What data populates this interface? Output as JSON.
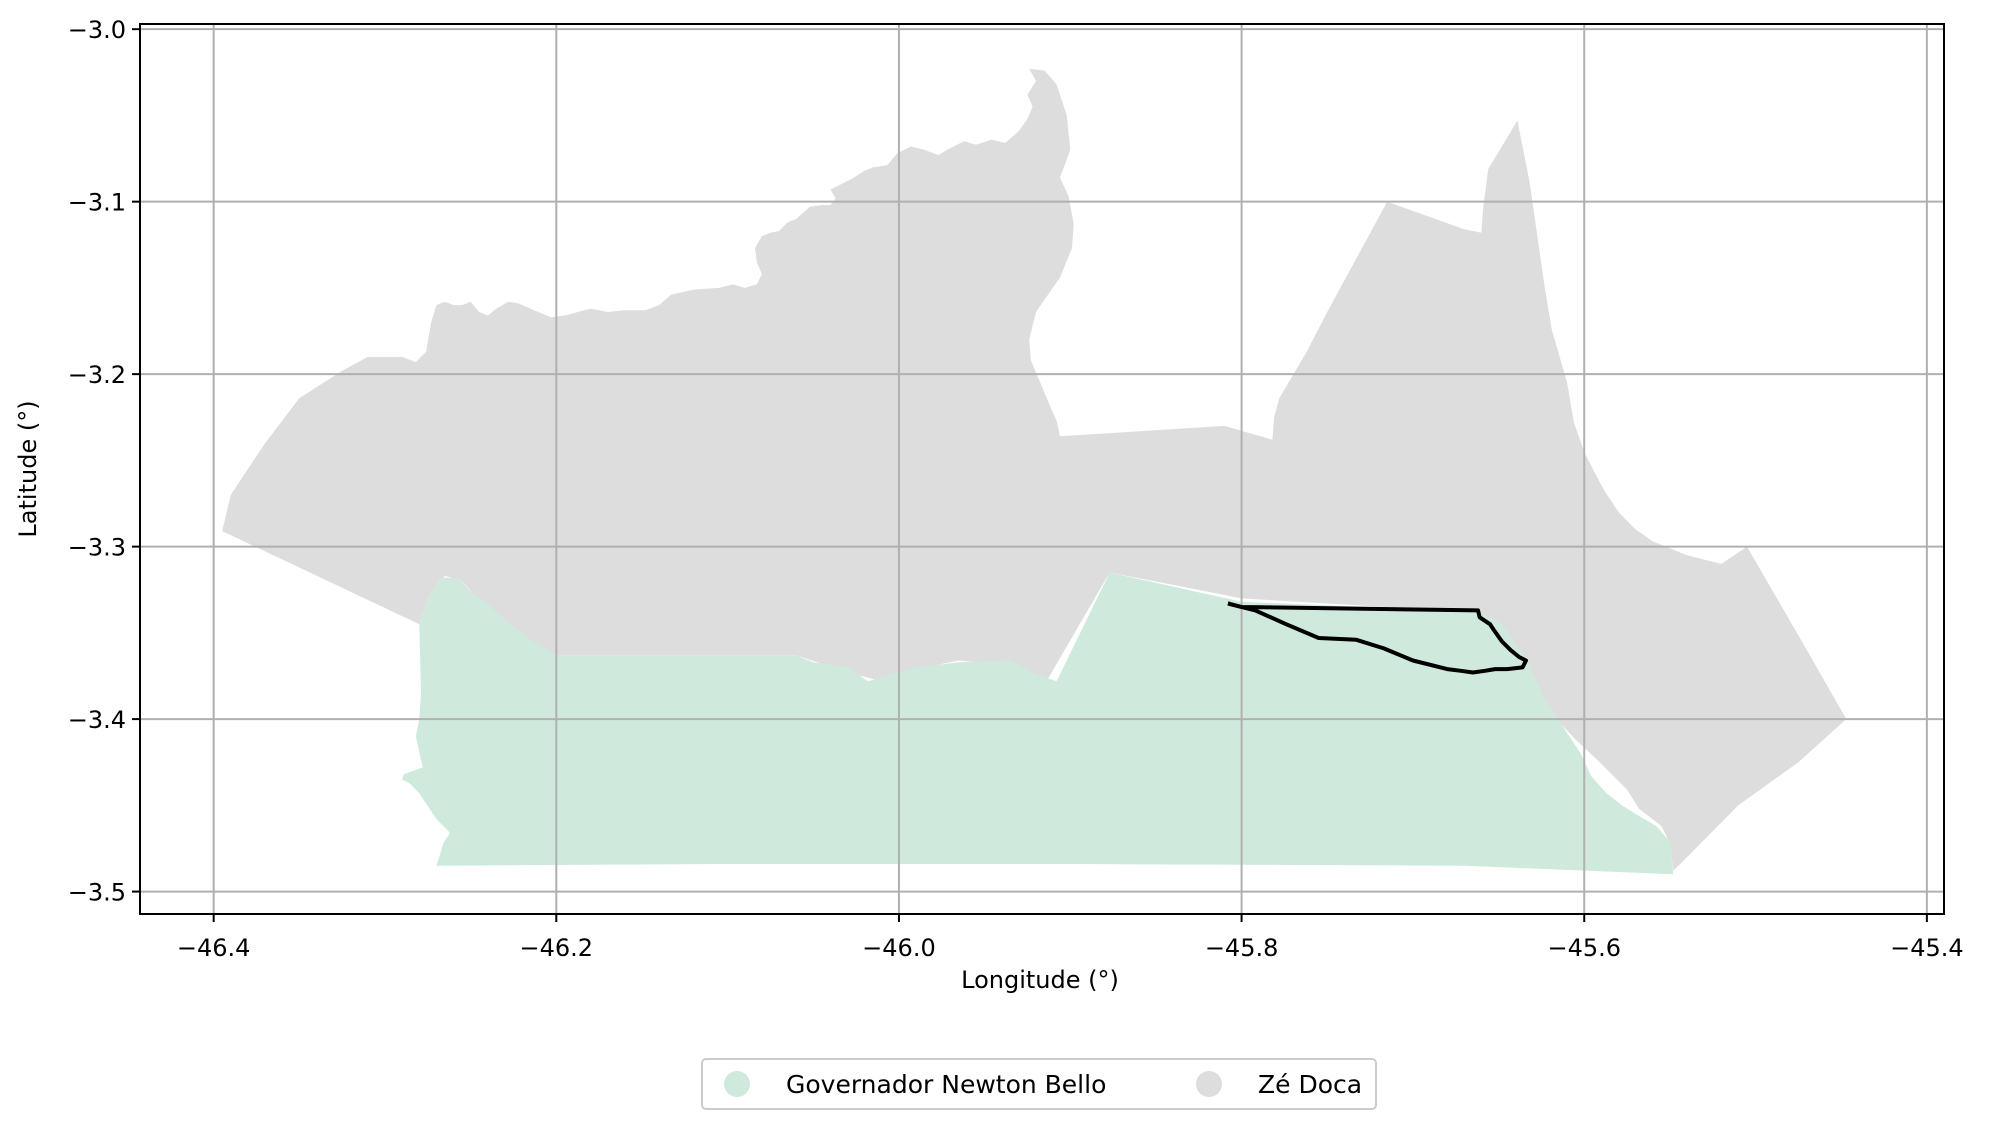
{
  "chart_data": {
    "type": "map",
    "xlabel": "Longitude (°)",
    "ylabel": "Latitude (°)",
    "xlim": [
      -46.443,
      -45.39
    ],
    "ylim": [
      -3.513,
      -2.997
    ],
    "grid": true,
    "legend_position": "bottom-center",
    "x_ticks": [
      {
        "value": -46.4,
        "label": "−46.4"
      },
      {
        "value": -46.2,
        "label": "−46.2"
      },
      {
        "value": -46.0,
        "label": "−46.0"
      },
      {
        "value": -45.8,
        "label": "−45.8"
      },
      {
        "value": -45.6,
        "label": "−45.6"
      },
      {
        "value": -45.4,
        "label": "−45.4"
      }
    ],
    "y_ticks": [
      {
        "value": -3.0,
        "label": "−3.0"
      },
      {
        "value": -3.1,
        "label": "−3.1"
      },
      {
        "value": -3.2,
        "label": "−3.2"
      },
      {
        "value": -3.3,
        "label": "−3.3"
      },
      {
        "value": -3.4,
        "label": "−3.4"
      },
      {
        "value": -3.5,
        "label": "−3.5"
      }
    ],
    "regions": [
      {
        "name": "Zé Doca",
        "color": "#dddddd",
        "outline": [
          [
            -46.395,
            -3.291
          ],
          [
            -46.39,
            -3.27
          ],
          [
            -46.37,
            -3.24
          ],
          [
            -46.35,
            -3.214
          ],
          [
            -46.325,
            -3.198
          ],
          [
            -46.31,
            -3.19
          ],
          [
            -46.29,
            -3.19
          ],
          [
            -46.282,
            -3.193
          ],
          [
            -46.276,
            -3.187
          ],
          [
            -46.273,
            -3.17
          ],
          [
            -46.27,
            -3.16
          ],
          [
            -46.265,
            -3.158
          ],
          [
            -46.26,
            -3.16
          ],
          [
            -46.255,
            -3.16
          ],
          [
            -46.25,
            -3.158
          ],
          [
            -46.245,
            -3.164
          ],
          [
            -46.24,
            -3.166
          ],
          [
            -46.235,
            -3.162
          ],
          [
            -46.228,
            -3.158
          ],
          [
            -46.222,
            -3.159
          ],
          [
            -46.213,
            -3.163
          ],
          [
            -46.203,
            -3.167
          ],
          [
            -46.195,
            -3.166
          ],
          [
            -46.18,
            -3.162
          ],
          [
            -46.17,
            -3.164
          ],
          [
            -46.16,
            -3.163
          ],
          [
            -46.148,
            -3.163
          ],
          [
            -46.14,
            -3.16
          ],
          [
            -46.133,
            -3.154
          ],
          [
            -46.12,
            -3.151
          ],
          [
            -46.105,
            -3.15
          ],
          [
            -46.097,
            -3.148
          ],
          [
            -46.09,
            -3.15
          ],
          [
            -46.083,
            -3.148
          ],
          [
            -46.08,
            -3.142
          ],
          [
            -46.083,
            -3.135
          ],
          [
            -46.084,
            -3.127
          ],
          [
            -46.08,
            -3.12
          ],
          [
            -46.075,
            -3.118
          ],
          [
            -46.07,
            -3.117
          ],
          [
            -46.065,
            -3.112
          ],
          [
            -46.06,
            -3.11
          ],
          [
            -46.052,
            -3.103
          ],
          [
            -46.045,
            -3.102
          ],
          [
            -46.04,
            -3.102
          ],
          [
            -46.037,
            -3.098
          ],
          [
            -46.04,
            -3.093
          ],
          [
            -46.028,
            -3.087
          ],
          [
            -46.02,
            -3.082
          ],
          [
            -46.015,
            -3.08
          ],
          [
            -46.007,
            -3.079
          ],
          [
            -46.001,
            -3.072
          ],
          [
            -45.993,
            -3.068
          ],
          [
            -45.985,
            -3.07
          ],
          [
            -45.977,
            -3.073
          ],
          [
            -45.972,
            -3.07
          ],
          [
            -45.962,
            -3.065
          ],
          [
            -45.955,
            -3.067
          ],
          [
            -45.946,
            -3.064
          ],
          [
            -45.938,
            -3.066
          ],
          [
            -45.93,
            -3.059
          ],
          [
            -45.925,
            -3.052
          ],
          [
            -45.922,
            -3.045
          ],
          [
            -45.925,
            -3.038
          ],
          [
            -45.92,
            -3.03
          ],
          [
            -45.924,
            -3.023
          ],
          [
            -45.915,
            -3.024
          ],
          [
            -45.908,
            -3.032
          ],
          [
            -45.902,
            -3.05
          ],
          [
            -45.9,
            -3.07
          ],
          [
            -45.906,
            -3.086
          ],
          [
            -45.901,
            -3.097
          ],
          [
            -45.898,
            -3.113
          ],
          [
            -45.899,
            -3.127
          ],
          [
            -45.906,
            -3.144
          ],
          [
            -45.92,
            -3.164
          ],
          [
            -45.924,
            -3.18
          ],
          [
            -45.923,
            -3.192
          ],
          [
            -45.912,
            -3.218
          ],
          [
            -45.908,
            -3.227
          ],
          [
            -45.906,
            -3.236
          ],
          [
            -45.81,
            -3.23
          ],
          [
            -45.782,
            -3.238
          ],
          [
            -45.781,
            -3.225
          ],
          [
            -45.778,
            -3.214
          ],
          [
            -45.762,
            -3.187
          ],
          [
            -45.75,
            -3.164
          ],
          [
            -45.715,
            -3.1
          ],
          [
            -45.67,
            -3.116
          ],
          [
            -45.66,
            -3.118
          ],
          [
            -45.659,
            -3.104
          ],
          [
            -45.656,
            -3.081
          ],
          [
            -45.639,
            -3.053
          ],
          [
            -45.632,
            -3.088
          ],
          [
            -45.623,
            -3.15
          ],
          [
            -45.619,
            -3.174
          ],
          [
            -45.61,
            -3.205
          ],
          [
            -45.606,
            -3.228
          ],
          [
            -45.6,
            -3.245
          ],
          [
            -45.594,
            -3.257
          ],
          [
            -45.588,
            -3.268
          ],
          [
            -45.58,
            -3.28
          ],
          [
            -45.57,
            -3.29
          ],
          [
            -45.56,
            -3.297
          ],
          [
            -45.54,
            -3.305
          ],
          [
            -45.52,
            -3.31
          ],
          [
            -45.505,
            -3.3
          ],
          [
            -45.47,
            -3.36
          ],
          [
            -45.447,
            -3.4
          ],
          [
            -45.475,
            -3.425
          ],
          [
            -45.51,
            -3.45
          ],
          [
            -45.535,
            -3.475
          ],
          [
            -45.548,
            -3.488
          ],
          [
            -45.55,
            -3.472
          ],
          [
            -45.555,
            -3.462
          ],
          [
            -45.568,
            -3.452
          ],
          [
            -45.575,
            -3.441
          ],
          [
            -45.592,
            -3.424
          ],
          [
            -45.605,
            -3.412
          ],
          [
            -45.618,
            -3.398
          ],
          [
            -45.626,
            -3.383
          ],
          [
            -45.633,
            -3.367
          ],
          [
            -45.663,
            -3.338
          ],
          [
            -45.8,
            -3.33
          ],
          [
            -45.877,
            -3.315
          ],
          [
            -45.915,
            -3.38
          ],
          [
            -45.935,
            -3.369
          ],
          [
            -45.965,
            -3.366
          ],
          [
            -45.99,
            -3.371
          ],
          [
            -46.01,
            -3.378
          ],
          [
            -46.03,
            -3.373
          ],
          [
            -46.06,
            -3.363
          ],
          [
            -46.2,
            -3.363
          ],
          [
            -46.215,
            -3.355
          ],
          [
            -46.235,
            -3.343
          ],
          [
            -46.255,
            -3.32
          ],
          [
            -46.265,
            -3.317
          ],
          [
            -46.275,
            -3.33
          ],
          [
            -46.28,
            -3.345
          ]
        ]
      },
      {
        "name": "Governador Newton Bello",
        "color": "#cfeadd",
        "outline": [
          [
            -46.28,
            -3.345
          ],
          [
            -46.275,
            -3.33
          ],
          [
            -46.268,
            -3.318
          ],
          [
            -46.257,
            -3.318
          ],
          [
            -46.25,
            -3.326
          ],
          [
            -46.24,
            -3.333
          ],
          [
            -46.233,
            -3.34
          ],
          [
            -46.215,
            -3.354
          ],
          [
            -46.2,
            -3.363
          ],
          [
            -46.06,
            -3.363
          ],
          [
            -46.05,
            -3.367
          ],
          [
            -46.03,
            -3.37
          ],
          [
            -46.018,
            -3.378
          ],
          [
            -45.99,
            -3.37
          ],
          [
            -45.965,
            -3.367
          ],
          [
            -45.935,
            -3.366
          ],
          [
            -45.92,
            -3.374
          ],
          [
            -45.908,
            -3.378
          ],
          [
            -45.877,
            -3.315
          ],
          [
            -45.8,
            -3.332
          ],
          [
            -45.7,
            -3.336
          ],
          [
            -45.663,
            -3.337
          ],
          [
            -45.648,
            -3.345
          ],
          [
            -45.633,
            -3.367
          ],
          [
            -45.623,
            -3.388
          ],
          [
            -45.61,
            -3.408
          ],
          [
            -45.602,
            -3.42
          ],
          [
            -45.596,
            -3.433
          ],
          [
            -45.587,
            -3.443
          ],
          [
            -45.578,
            -3.45
          ],
          [
            -45.57,
            -3.455
          ],
          [
            -45.558,
            -3.462
          ],
          [
            -45.55,
            -3.471
          ],
          [
            -45.548,
            -3.49
          ],
          [
            -45.67,
            -3.485
          ],
          [
            -45.9,
            -3.484
          ],
          [
            -46.1,
            -3.484
          ],
          [
            -46.27,
            -3.485
          ],
          [
            -46.268,
            -3.479
          ],
          [
            -46.266,
            -3.472
          ],
          [
            -46.262,
            -3.466
          ],
          [
            -46.27,
            -3.458
          ],
          [
            -46.28,
            -3.443
          ],
          [
            -46.286,
            -3.437
          ],
          [
            -46.29,
            -3.435
          ],
          [
            -46.289,
            -3.432
          ],
          [
            -46.278,
            -3.428
          ],
          [
            -46.282,
            -3.41
          ],
          [
            -46.28,
            -3.4
          ],
          [
            -46.279,
            -3.385
          ]
        ]
      }
    ],
    "highlight_outline": {
      "color": "#000000",
      "points": [
        [
          -45.808,
          -3.333
        ],
        [
          -45.792,
          -3.337
        ],
        [
          -45.774,
          -3.345
        ],
        [
          -45.755,
          -3.353
        ],
        [
          -45.733,
          -3.354
        ],
        [
          -45.717,
          -3.359
        ],
        [
          -45.7,
          -3.366
        ],
        [
          -45.68,
          -3.371
        ],
        [
          -45.672,
          -3.372
        ],
        [
          -45.665,
          -3.373
        ],
        [
          -45.658,
          -3.372
        ],
        [
          -45.652,
          -3.371
        ],
        [
          -45.645,
          -3.371
        ],
        [
          -45.636,
          -3.37
        ],
        [
          -45.634,
          -3.366
        ],
        [
          -45.638,
          -3.364
        ],
        [
          -45.643,
          -3.36
        ],
        [
          -45.648,
          -3.355
        ],
        [
          -45.653,
          -3.348
        ],
        [
          -45.655,
          -3.345
        ],
        [
          -45.661,
          -3.341
        ],
        [
          -45.662,
          -3.337
        ],
        [
          -45.8,
          -3.335
        ],
        [
          -45.808,
          -3.333
        ]
      ]
    }
  },
  "legend": {
    "items": [
      {
        "label": "Governador Newton Bello",
        "color": "#cfeadd"
      },
      {
        "label": "Zé Doca",
        "color": "#dddddd"
      }
    ]
  }
}
